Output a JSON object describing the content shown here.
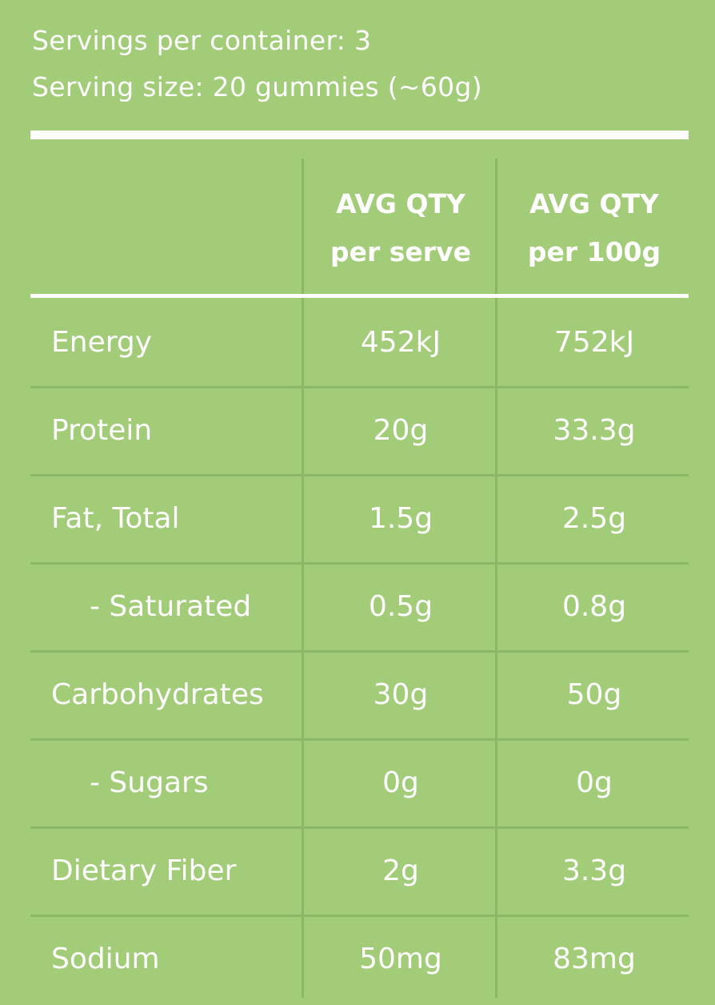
{
  "serving": {
    "per_container": "Servings per container: 3",
    "size": "Serving size: 20 gummies (~60g)"
  },
  "columns": {
    "per_serve": {
      "line1": "AVG QTY",
      "line2": "per serve"
    },
    "per_100g": {
      "line1": "AVG QTY",
      "line2": "per 100g"
    }
  },
  "rows": [
    {
      "label": "Energy",
      "per_serve": "452kJ",
      "per_100g": "752kJ"
    },
    {
      "label": "Protein",
      "per_serve": "20g",
      "per_100g": "33.3g"
    },
    {
      "label": "Fat, Total",
      "per_serve": "1.5g",
      "per_100g": "2.5g"
    },
    {
      "label": "- Saturated",
      "per_serve": "0.5g",
      "per_100g": "0.8g"
    },
    {
      "label": "Carbohydrates",
      "per_serve": "30g",
      "per_100g": "50g"
    },
    {
      "label": "- Sugars",
      "per_serve": "0g",
      "per_100g": "0g"
    },
    {
      "label": "Dietary Fiber",
      "per_serve": "2g",
      "per_100g": "3.3g"
    },
    {
      "label": "Sodium",
      "per_serve": "50mg",
      "per_100g": "83mg"
    }
  ],
  "colors": {
    "background": "#a2cc78",
    "text": "#ffffff",
    "grid_lines": "#8ab867"
  }
}
